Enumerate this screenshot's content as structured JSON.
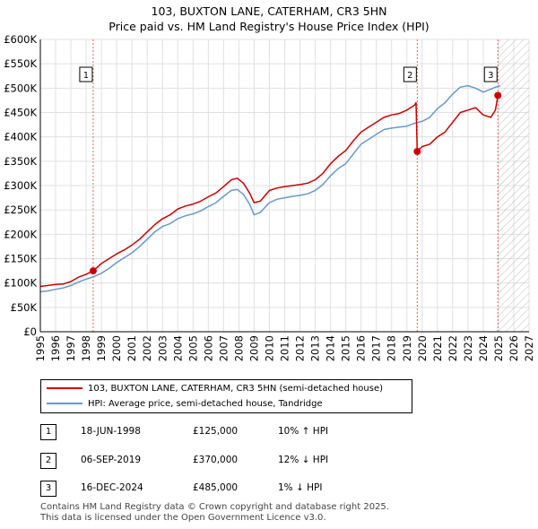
{
  "title_line1": "103, BUXTON LANE, CATERHAM, CR3 5HN",
  "title_line2": "Price paid vs. HM Land Registry's House Price Index (HPI)",
  "colors": {
    "property": "#cc0000",
    "hpi": "#6699cc",
    "marker": "#cc0000",
    "grid": "#e0e0e0",
    "vline": "#dd6666"
  },
  "chart_data": {
    "type": "line",
    "title": "Price paid vs. HM Land Registry's House Price Index (HPI)",
    "xlabel": "",
    "ylabel": "",
    "xlim": [
      1995,
      2027
    ],
    "ylim": [
      0,
      600000
    ],
    "y_ticks": [
      {
        "value": 0,
        "label": "£0"
      },
      {
        "value": 50000,
        "label": "£50K"
      },
      {
        "value": 100000,
        "label": "£100K"
      },
      {
        "value": 150000,
        "label": "£150K"
      },
      {
        "value": 200000,
        "label": "£200K"
      },
      {
        "value": 250000,
        "label": "£250K"
      },
      {
        "value": 300000,
        "label": "£300K"
      },
      {
        "value": 350000,
        "label": "£350K"
      },
      {
        "value": 400000,
        "label": "£400K"
      },
      {
        "value": 450000,
        "label": "£450K"
      },
      {
        "value": 500000,
        "label": "£500K"
      },
      {
        "value": 550000,
        "label": "£550K"
      },
      {
        "value": 600000,
        "label": "£600K"
      }
    ],
    "x_ticks": [
      "1995",
      "1996",
      "1997",
      "1998",
      "1999",
      "2000",
      "2001",
      "2002",
      "2003",
      "2004",
      "2005",
      "2006",
      "2007",
      "2008",
      "2009",
      "2010",
      "2011",
      "2012",
      "2013",
      "2014",
      "2015",
      "2016",
      "2017",
      "2018",
      "2019",
      "2020",
      "2021",
      "2022",
      "2023",
      "2024",
      "2025",
      "2026",
      "2027"
    ],
    "future_shade_from": 2025.0,
    "series": [
      {
        "name": "103, BUXTON LANE, CATERHAM, CR3 5HN (semi-detached house)",
        "color": "#cc0000",
        "x": [
          1995.0,
          1995.5,
          1996.0,
          1996.5,
          1997.0,
          1997.5,
          1998.0,
          1998.46,
          1999.0,
          1999.5,
          2000.0,
          2000.5,
          2001.0,
          2001.5,
          2002.0,
          2002.5,
          2003.0,
          2003.5,
          2004.0,
          2004.5,
          2005.0,
          2005.5,
          2006.0,
          2006.5,
          2007.0,
          2007.5,
          2007.9,
          2008.3,
          2008.7,
          2009.0,
          2009.4,
          2010.0,
          2010.5,
          2011.0,
          2011.5,
          2012.0,
          2012.5,
          2013.0,
          2013.5,
          2014.0,
          2014.5,
          2015.0,
          2015.5,
          2016.0,
          2016.5,
          2017.0,
          2017.5,
          2018.0,
          2018.5,
          2019.0,
          2019.5,
          2019.6,
          2019.68,
          2020.0,
          2020.5,
          2021.0,
          2021.5,
          2022.0,
          2022.5,
          2023.0,
          2023.5,
          2024.0,
          2024.5,
          2024.8,
          2024.96,
          2025.1
        ],
        "y": [
          93000,
          95000,
          97000,
          98000,
          103000,
          112000,
          118000,
          125000,
          140000,
          150000,
          160000,
          168000,
          178000,
          190000,
          205000,
          220000,
          232000,
          240000,
          252000,
          258000,
          262000,
          268000,
          277000,
          285000,
          298000,
          312000,
          315000,
          305000,
          285000,
          265000,
          268000,
          290000,
          295000,
          298000,
          300000,
          302000,
          305000,
          312000,
          325000,
          345000,
          360000,
          372000,
          392000,
          410000,
          420000,
          430000,
          440000,
          445000,
          448000,
          455000,
          465000,
          470000,
          370000,
          380000,
          385000,
          400000,
          410000,
          430000,
          450000,
          455000,
          460000,
          445000,
          440000,
          455000,
          485000,
          480000
        ]
      },
      {
        "name": "HPI: Average price, semi-detached house, Tandridge",
        "color": "#6699cc",
        "x": [
          1995.0,
          1995.5,
          1996.0,
          1996.5,
          1997.0,
          1997.5,
          1998.0,
          1998.5,
          1999.0,
          1999.5,
          2000.0,
          2000.5,
          2001.0,
          2001.5,
          2002.0,
          2002.5,
          2003.0,
          2003.5,
          2004.0,
          2004.5,
          2005.0,
          2005.5,
          2006.0,
          2006.5,
          2007.0,
          2007.5,
          2007.9,
          2008.3,
          2008.7,
          2009.0,
          2009.4,
          2010.0,
          2010.5,
          2011.0,
          2011.5,
          2012.0,
          2012.5,
          2013.0,
          2013.5,
          2014.0,
          2014.5,
          2015.0,
          2015.5,
          2016.0,
          2016.5,
          2017.0,
          2017.5,
          2018.0,
          2018.5,
          2019.0,
          2019.5,
          2020.0,
          2020.5,
          2021.0,
          2021.5,
          2022.0,
          2022.5,
          2023.0,
          2023.5,
          2024.0,
          2024.5,
          2024.8,
          2025.1
        ],
        "y": [
          82000,
          84000,
          87000,
          90000,
          95000,
          102000,
          108000,
          113000,
          120000,
          130000,
          142000,
          152000,
          162000,
          175000,
          190000,
          205000,
          216000,
          222000,
          232000,
          238000,
          242000,
          248000,
          257000,
          265000,
          278000,
          290000,
          292000,
          282000,
          262000,
          240000,
          245000,
          265000,
          272000,
          275000,
          278000,
          280000,
          283000,
          290000,
          302000,
          320000,
          335000,
          345000,
          365000,
          385000,
          395000,
          405000,
          415000,
          418000,
          420000,
          422000,
          428000,
          432000,
          440000,
          458000,
          470000,
          488000,
          502000,
          505000,
          500000,
          492000,
          498000,
          502000,
          505000
        ]
      }
    ],
    "sales": [
      {
        "id": "1",
        "date": "18-JUN-1998",
        "x": 1998.46,
        "price": 125000
      },
      {
        "id": "2",
        "date": "06-SEP-2019",
        "x": 2019.68,
        "price": 370000
      },
      {
        "id": "3",
        "date": "16-DEC-2024",
        "x": 2024.96,
        "price": 485000
      }
    ]
  },
  "legend": {
    "property_label": "103, BUXTON LANE, CATERHAM, CR3 5HN (semi-detached house)",
    "hpi_label": "HPI: Average price, semi-detached house, Tandridge"
  },
  "table": [
    {
      "num": "1",
      "date": "18-JUN-1998",
      "price": "£125,000",
      "delta": "10% ↑ HPI"
    },
    {
      "num": "2",
      "date": "06-SEP-2019",
      "price": "£370,000",
      "delta": "12% ↓ HPI"
    },
    {
      "num": "3",
      "date": "16-DEC-2024",
      "price": "£485,000",
      "delta": "1% ↓ HPI"
    }
  ],
  "footer_line1": "Contains HM Land Registry data © Crown copyright and database right 2025.",
  "footer_line2": "This data is licensed under the Open Government Licence v3.0."
}
